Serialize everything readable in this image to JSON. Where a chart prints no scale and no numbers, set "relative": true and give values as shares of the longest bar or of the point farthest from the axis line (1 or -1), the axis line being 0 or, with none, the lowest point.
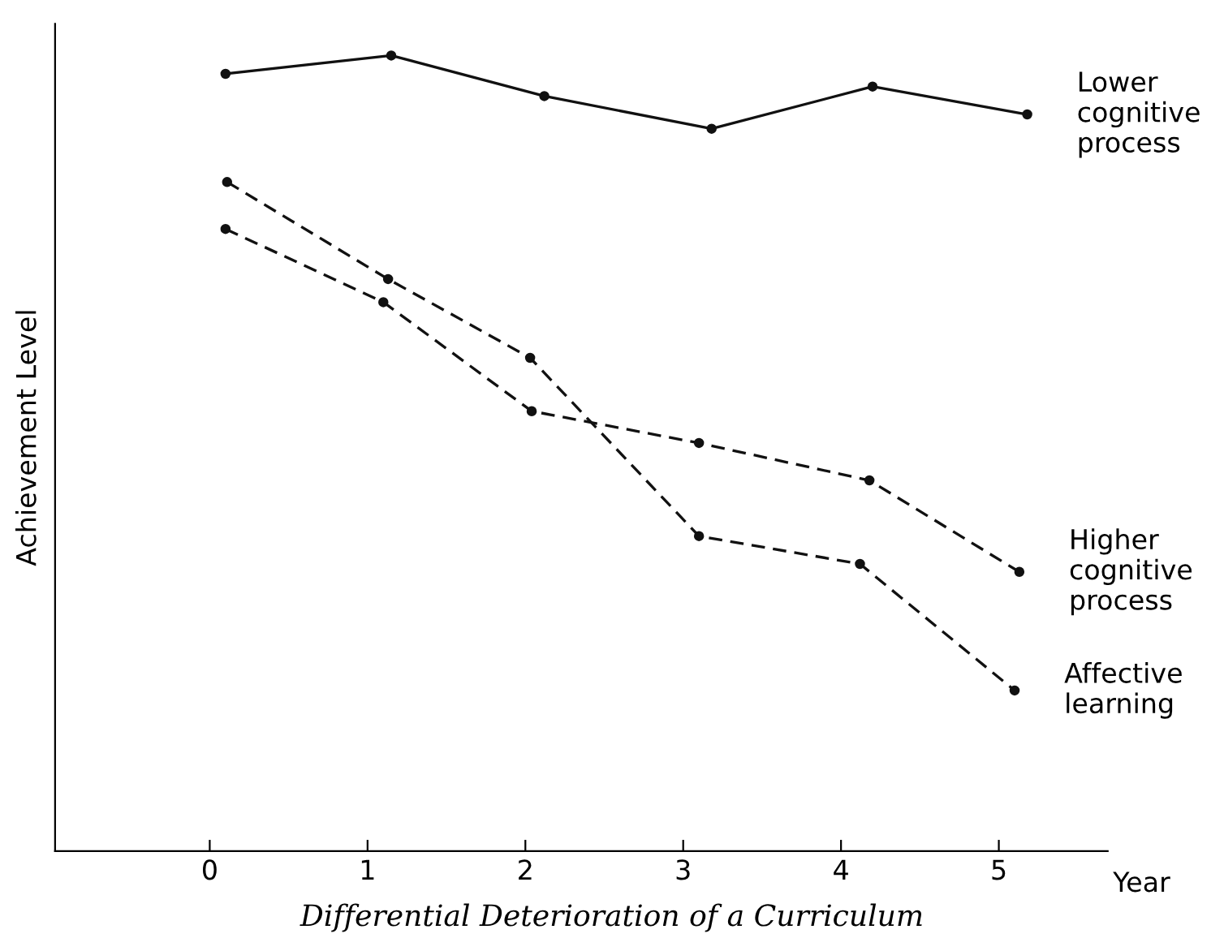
{
  "chart_data": {
    "type": "line",
    "relative": true,
    "title": "Differential Deterioration of a Curriculum",
    "xlabel": "Year",
    "ylabel": "Achievement Level",
    "xlim": [
      -0.98,
      5.69
    ],
    "xticks": [
      0,
      1,
      2,
      3,
      4,
      5
    ],
    "marker": "circle",
    "grid": false,
    "legend": false,
    "series": [
      {
        "name": "Lower cognitive process",
        "color": "#111111",
        "line_style": "solid",
        "x": [
          0.1,
          1.15,
          2.12,
          3.18,
          4.2,
          5.18
        ],
        "values": [
          0.977,
          1.0,
          0.949,
          0.908,
          0.961,
          0.926
        ]
      },
      {
        "name": "Higher cognitive process",
        "color": "#111111",
        "line_style": "dashed",
        "x": [
          0.1,
          1.1,
          2.04,
          3.1,
          4.18,
          5.13
        ],
        "values": [
          0.782,
          0.69,
          0.553,
          0.513,
          0.466,
          0.351
        ]
      },
      {
        "name": "Affective learning",
        "color": "#111111",
        "line_style": "dashed",
        "x": [
          0.11,
          1.13,
          2.03,
          3.1,
          4.12,
          5.1
        ],
        "values": [
          0.841,
          0.719,
          0.62,
          0.396,
          0.361,
          0.202
        ]
      }
    ]
  }
}
